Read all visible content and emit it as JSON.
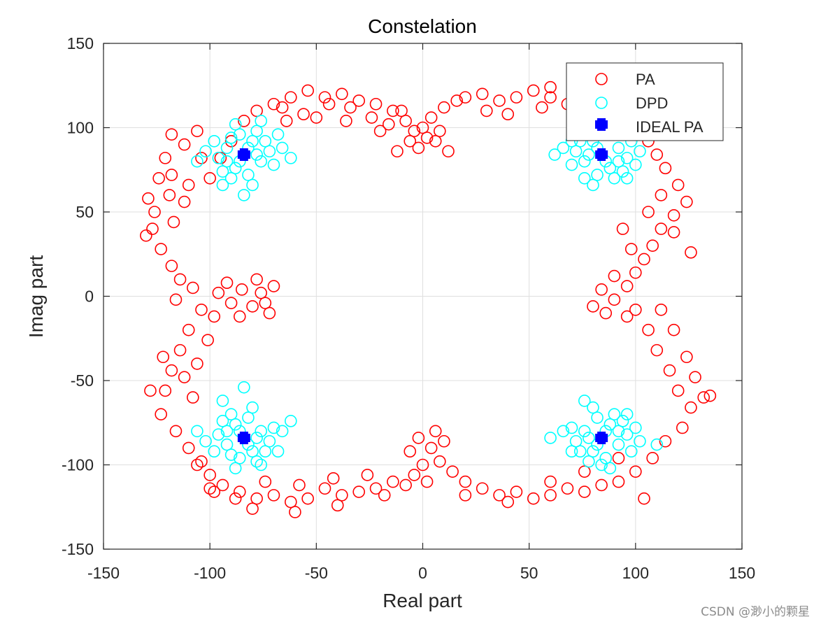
{
  "chart_data": {
    "type": "scatter",
    "title": "Constelation",
    "xlabel": "Real part",
    "ylabel": "Imag part",
    "xlim": [
      -150,
      150
    ],
    "ylim": [
      -150,
      150
    ],
    "xticks": [
      "-150",
      "-100",
      "-50",
      "0",
      "50",
      "100",
      "150"
    ],
    "yticks": [
      "150",
      "100",
      "50",
      "0",
      "-50",
      "-100",
      "-150"
    ],
    "grid": true,
    "legend_position": "top-right",
    "series": [
      {
        "name": "PA",
        "color": "#ff0000",
        "marker": "open-circle",
        "points": [
          [
            -129,
            58
          ],
          [
            -124,
            70
          ],
          [
            -121,
            82
          ],
          [
            -127,
            40
          ],
          [
            -123,
            28
          ],
          [
            -118,
            18
          ],
          [
            -114,
            10
          ],
          [
            -117,
            44
          ],
          [
            -112,
            56
          ],
          [
            -119,
            60
          ],
          [
            -116,
            -2
          ],
          [
            -108,
            5
          ],
          [
            -104,
            -8
          ],
          [
            -110,
            -20
          ],
          [
            -114,
            -32
          ],
          [
            -118,
            -44
          ],
          [
            -121,
            -56
          ],
          [
            -123,
            -70
          ],
          [
            -116,
            -80
          ],
          [
            -110,
            -90
          ],
          [
            -104,
            -98
          ],
          [
            -108,
            -60
          ],
          [
            -112,
            -48
          ],
          [
            -106,
            -40
          ],
          [
            -101,
            -26
          ],
          [
            -96,
            2
          ],
          [
            -90,
            -4
          ],
          [
            -85,
            4
          ],
          [
            -80,
            -6
          ],
          [
            -76,
            2
          ],
          [
            -72,
            -10
          ],
          [
            -70,
            6
          ],
          [
            -86,
            -12
          ],
          [
            -92,
            8
          ],
          [
            -98,
            -12
          ],
          [
            -78,
            10
          ],
          [
            -74,
            -4
          ],
          [
            -100,
            70
          ],
          [
            -95,
            82
          ],
          [
            -90,
            92
          ],
          [
            -84,
            104
          ],
          [
            -78,
            110
          ],
          [
            -70,
            114
          ],
          [
            -62,
            118
          ],
          [
            -54,
            122
          ],
          [
            -46,
            118
          ],
          [
            -38,
            120
          ],
          [
            -30,
            116
          ],
          [
            -22,
            114
          ],
          [
            -14,
            110
          ],
          [
            -8,
            104
          ],
          [
            -16,
            102
          ],
          [
            -24,
            106
          ],
          [
            -34,
            112
          ],
          [
            -44,
            114
          ],
          [
            -56,
            108
          ],
          [
            -66,
            112
          ],
          [
            -112,
            90
          ],
          [
            -106,
            98
          ],
          [
            -118,
            72
          ],
          [
            -126,
            50
          ],
          [
            -110,
            66
          ],
          [
            -104,
            82
          ],
          [
            0,
            100
          ],
          [
            -6,
            92
          ],
          [
            6,
            92
          ],
          [
            -12,
            86
          ],
          [
            12,
            86
          ],
          [
            -4,
            98
          ],
          [
            4,
            106
          ],
          [
            10,
            112
          ],
          [
            16,
            116
          ],
          [
            -10,
            110
          ],
          [
            2,
            94
          ],
          [
            8,
            98
          ],
          [
            -2,
            88
          ],
          [
            20,
            118
          ],
          [
            28,
            120
          ],
          [
            36,
            116
          ],
          [
            44,
            118
          ],
          [
            52,
            122
          ],
          [
            60,
            118
          ],
          [
            68,
            114
          ],
          [
            76,
            110
          ],
          [
            84,
            112
          ],
          [
            92,
            106
          ],
          [
            100,
            100
          ],
          [
            106,
            92
          ],
          [
            110,
            84
          ],
          [
            114,
            76
          ],
          [
            120,
            66
          ],
          [
            124,
            56
          ],
          [
            118,
            48
          ],
          [
            112,
            40
          ],
          [
            108,
            30
          ],
          [
            104,
            22
          ],
          [
            100,
            14
          ],
          [
            96,
            6
          ],
          [
            90,
            -2
          ],
          [
            84,
            4
          ],
          [
            80,
            -6
          ],
          [
            90,
            12
          ],
          [
            96,
            -12
          ],
          [
            86,
            -10
          ],
          [
            100,
            -8
          ],
          [
            106,
            -20
          ],
          [
            110,
            -32
          ],
          [
            116,
            -44
          ],
          [
            120,
            -56
          ],
          [
            126,
            -66
          ],
          [
            132,
            -60
          ],
          [
            122,
            -78
          ],
          [
            114,
            -86
          ],
          [
            108,
            -96
          ],
          [
            100,
            -104
          ],
          [
            92,
            -110
          ],
          [
            84,
            -112
          ],
          [
            76,
            -116
          ],
          [
            68,
            -114
          ],
          [
            60,
            -118
          ],
          [
            52,
            -120
          ],
          [
            44,
            -116
          ],
          [
            36,
            -118
          ],
          [
            28,
            -114
          ],
          [
            20,
            -110
          ],
          [
            14,
            -104
          ],
          [
            8,
            -98
          ],
          [
            4,
            -90
          ],
          [
            -2,
            -84
          ],
          [
            6,
            -80
          ],
          [
            10,
            -86
          ],
          [
            -6,
            -92
          ],
          [
            0,
            -100
          ],
          [
            -4,
            -106
          ],
          [
            2,
            -110
          ],
          [
            -8,
            -112
          ],
          [
            -14,
            -110
          ],
          [
            -22,
            -114
          ],
          [
            -30,
            -116
          ],
          [
            -38,
            -118
          ],
          [
            -46,
            -114
          ],
          [
            -54,
            -120
          ],
          [
            -62,
            -122
          ],
          [
            -70,
            -118
          ],
          [
            -78,
            -120
          ],
          [
            -86,
            -116
          ],
          [
            -94,
            -112
          ],
          [
            -100,
            -106
          ],
          [
            -106,
            -100
          ],
          [
            -98,
            -116
          ],
          [
            -88,
            -120
          ],
          [
            -74,
            -110
          ],
          [
            -58,
            -112
          ],
          [
            -42,
            -108
          ],
          [
            -26,
            -106
          ],
          [
            -18,
            -118
          ],
          [
            112,
            -8
          ],
          [
            118,
            -20
          ],
          [
            124,
            -36
          ],
          [
            128,
            -48
          ],
          [
            112,
            60
          ],
          [
            118,
            38
          ],
          [
            126,
            26
          ],
          [
            106,
            50
          ],
          [
            98,
            28
          ],
          [
            94,
            40
          ],
          [
            30,
            110
          ],
          [
            40,
            108
          ],
          [
            56,
            112
          ],
          [
            72,
            120
          ],
          [
            88,
            118
          ],
          [
            -64,
            104
          ],
          [
            -50,
            106
          ],
          [
            -36,
            104
          ],
          [
            -20,
            98
          ],
          [
            -40,
            -124
          ],
          [
            -60,
            -128
          ],
          [
            -80,
            -126
          ],
          [
            20,
            -118
          ],
          [
            40,
            -122
          ],
          [
            60,
            -110
          ],
          [
            76,
            -104
          ],
          [
            92,
            -96
          ],
          [
            135,
            -59
          ],
          [
            -128,
            -56
          ],
          [
            -130,
            36
          ],
          [
            -122,
            -36
          ],
          [
            -100,
            -114
          ],
          [
            104,
            -120
          ],
          [
            -118,
            96
          ],
          [
            60,
            124
          ]
        ]
      },
      {
        "name": "DPD",
        "color": "#00ffff",
        "marker": "open-circle",
        "points": [
          [
            -84,
            84
          ],
          [
            -92,
            88
          ],
          [
            -76,
            80
          ],
          [
            -88,
            76
          ],
          [
            -80,
            92
          ],
          [
            -96,
            82
          ],
          [
            -72,
            86
          ],
          [
            -86,
            96
          ],
          [
            -82,
            72
          ],
          [
            -90,
            70
          ],
          [
            -78,
            98
          ],
          [
            -70,
            78
          ],
          [
            -98,
            92
          ],
          [
            -94,
            74
          ],
          [
            -74,
            92
          ],
          [
            -66,
            88
          ],
          [
            -102,
            86
          ],
          [
            -88,
            102
          ],
          [
            -80,
            66
          ],
          [
            -62,
            82
          ],
          [
            -84,
            60
          ],
          [
            -94,
            66
          ],
          [
            -106,
            80
          ],
          [
            -68,
            96
          ],
          [
            -76,
            104
          ],
          [
            -90,
            94
          ],
          [
            -86,
            80
          ],
          [
            -78,
            84
          ],
          [
            -82,
            88
          ],
          [
            -92,
            80
          ],
          [
            84,
            84
          ],
          [
            92,
            88
          ],
          [
            76,
            80
          ],
          [
            88,
            76
          ],
          [
            80,
            92
          ],
          [
            96,
            82
          ],
          [
            72,
            86
          ],
          [
            86,
            96
          ],
          [
            82,
            72
          ],
          [
            90,
            70
          ],
          [
            78,
            98
          ],
          [
            70,
            78
          ],
          [
            98,
            92
          ],
          [
            94,
            74
          ],
          [
            74,
            92
          ],
          [
            66,
            88
          ],
          [
            102,
            86
          ],
          [
            88,
            102
          ],
          [
            80,
            66
          ],
          [
            62,
            84
          ],
          [
            84,
            96
          ],
          [
            96,
            70
          ],
          [
            76,
            70
          ],
          [
            100,
            78
          ],
          [
            90,
            100
          ],
          [
            86,
            80
          ],
          [
            78,
            84
          ],
          [
            82,
            88
          ],
          [
            92,
            80
          ],
          [
            70,
            92
          ],
          [
            -84,
            -84
          ],
          [
            -92,
            -88
          ],
          [
            -76,
            -80
          ],
          [
            -88,
            -76
          ],
          [
            -80,
            -92
          ],
          [
            -96,
            -82
          ],
          [
            -72,
            -86
          ],
          [
            -86,
            -96
          ],
          [
            -82,
            -72
          ],
          [
            -90,
            -70
          ],
          [
            -78,
            -98
          ],
          [
            -70,
            -78
          ],
          [
            -98,
            -92
          ],
          [
            -94,
            -74
          ],
          [
            -74,
            -92
          ],
          [
            -66,
            -80
          ],
          [
            -102,
            -86
          ],
          [
            -88,
            -102
          ],
          [
            -80,
            -66
          ],
          [
            -62,
            -74
          ],
          [
            -84,
            -54
          ],
          [
            -94,
            -62
          ],
          [
            -106,
            -80
          ],
          [
            -68,
            -92
          ],
          [
            -76,
            -100
          ],
          [
            -90,
            -94
          ],
          [
            -86,
            -80
          ],
          [
            -78,
            -84
          ],
          [
            -82,
            -88
          ],
          [
            -92,
            -80
          ],
          [
            84,
            -84
          ],
          [
            92,
            -88
          ],
          [
            76,
            -80
          ],
          [
            88,
            -76
          ],
          [
            80,
            -92
          ],
          [
            96,
            -82
          ],
          [
            72,
            -86
          ],
          [
            86,
            -96
          ],
          [
            82,
            -72
          ],
          [
            90,
            -70
          ],
          [
            78,
            -98
          ],
          [
            70,
            -78
          ],
          [
            98,
            -92
          ],
          [
            94,
            -74
          ],
          [
            74,
            -92
          ],
          [
            66,
            -80
          ],
          [
            102,
            -86
          ],
          [
            88,
            -102
          ],
          [
            80,
            -66
          ],
          [
            60,
            -84
          ],
          [
            84,
            -100
          ],
          [
            96,
            -70
          ],
          [
            76,
            -62
          ],
          [
            100,
            -78
          ],
          [
            110,
            -88
          ],
          [
            86,
            -80
          ],
          [
            78,
            -84
          ],
          [
            82,
            -88
          ],
          [
            92,
            -80
          ],
          [
            70,
            -92
          ]
        ]
      },
      {
        "name": "IDEAL PA",
        "color": "#0000ff",
        "marker": "filled-square",
        "points": [
          [
            -84,
            84
          ],
          [
            84,
            84
          ],
          [
            -84,
            -84
          ],
          [
            84,
            -84
          ]
        ]
      }
    ]
  },
  "watermark": "CSDN @渺小的颗星"
}
